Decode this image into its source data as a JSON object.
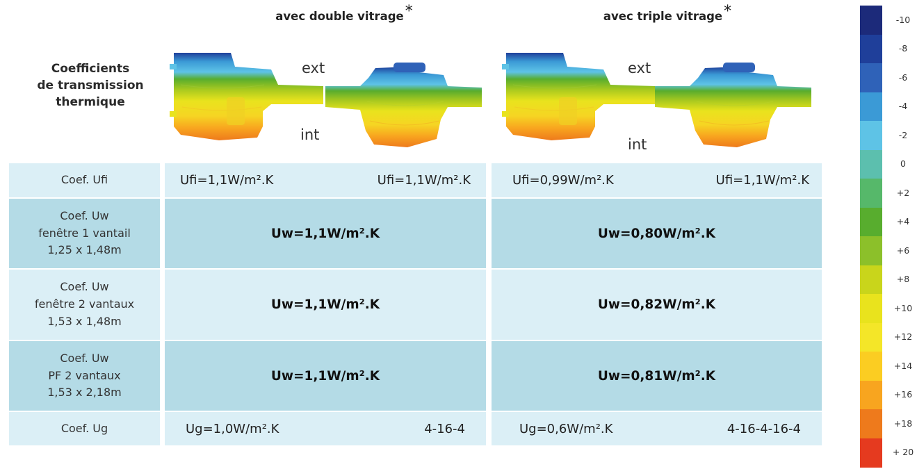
{
  "header": {
    "title_lines": [
      "Coefficients",
      "de transmission",
      "thermique"
    ],
    "columns": [
      {
        "label": "avec double vitrage",
        "star": "*"
      },
      {
        "label": "avec triple vitrage",
        "star": "*"
      }
    ]
  },
  "profiles": {
    "ext_label": "ext",
    "int_label": "int"
  },
  "table": {
    "rows": [
      {
        "label_lines": [
          "Coef. Ufi"
        ],
        "double": [
          "Ufi=1,1W/m².K",
          "Ufi=1,1W/m².K"
        ],
        "triple": [
          "Ufi=0,99W/m².K",
          "Ufi=1,1W/m².K"
        ]
      },
      {
        "label_lines": [
          "Coef. Uw",
          "fenêtre 1 vantail",
          "1,25 x 1,48m"
        ],
        "double": "Uw=1,1W/m².K",
        "triple": "Uw=0,80W/m².K"
      },
      {
        "label_lines": [
          "Coef. Uw",
          "fenêtre 2 vantaux",
          "1,53 x 1,48m"
        ],
        "double": "Uw=1,1W/m².K",
        "triple": "Uw=0,82W/m².K"
      },
      {
        "label_lines": [
          "Coef. Uw",
          "PF 2 vantaux",
          "1,53 x 2,18m"
        ],
        "double": "Uw=1,1W/m².K",
        "triple": "Uw=0,81W/m².K"
      },
      {
        "label_lines": [
          "Coef. Ug"
        ],
        "double": [
          "Ug=1,0W/m².K",
          "4-16-4"
        ],
        "triple": [
          "Ug=0,6W/m².K",
          "4-16-4-16-4"
        ]
      }
    ]
  },
  "scale": {
    "labels": [
      "-10",
      "-8",
      "-6",
      "-4",
      "-2",
      "0",
      "+2",
      "+4",
      "+6",
      "+8",
      "+10",
      "+12",
      "+14",
      "+16",
      "+18",
      "+ 20"
    ],
    "colors": [
      "#1c2a7a",
      "#1f3f9a",
      "#2f62b8",
      "#3b9ad6",
      "#5ec3e6",
      "#5cbfae",
      "#56b86a",
      "#58ad2e",
      "#8cc02a",
      "#c9d51b",
      "#e9e31d",
      "#f4e628",
      "#fbcd22",
      "#f8a51f",
      "#ee7a1c",
      "#e53a1f"
    ]
  }
}
